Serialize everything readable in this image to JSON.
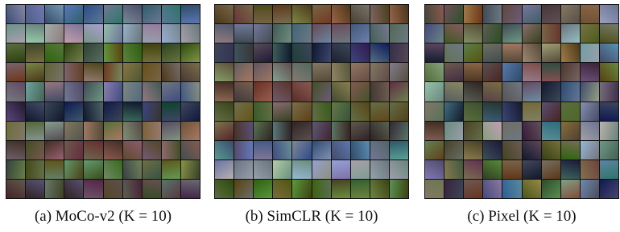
{
  "panels": [
    {
      "caption": "(a) MoCo-v2 (K = 10)"
    },
    {
      "caption": "(b) SimCLR (K = 10)"
    },
    {
      "caption": "(c) Pixel (K = 10)"
    }
  ]
}
